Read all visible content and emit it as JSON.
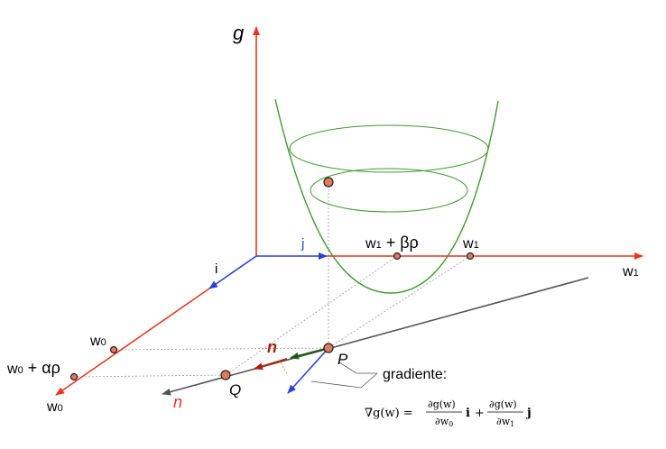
{
  "axes": {
    "g_label": "g",
    "w1_label_main": "w",
    "w1_label_sub": "1",
    "w0_label_main": "w",
    "w0_label_sub": "0",
    "i_label": "i",
    "j_label": "j"
  },
  "points": {
    "w1_plus_main": "w",
    "w1_plus_sub": "1",
    "w1_plus_rest": " + βρ",
    "w1_pt_main": "w",
    "w1_pt_sub": "1",
    "w0_pt_main": "w",
    "w0_pt_sub": "0",
    "w0_plus_main": "w",
    "w0_plus_sub": "0",
    "w0_plus_rest": " + αρ",
    "P": "P",
    "Q": "Q"
  },
  "normal": {
    "n_upper": "n",
    "n_lower": "n"
  },
  "gradient": {
    "label": "gradiente:",
    "nabla_lhs": "∇g(w) =",
    "term1_num": "∂g(w)",
    "term1_den_main": "∂w",
    "term1_den_sub": "0",
    "term1_vec": "i",
    "plus": "+",
    "term2_num": "∂g(w)",
    "term2_den_main": "∂w",
    "term2_den_sub": "1",
    "term2_vec": "j"
  },
  "colors": {
    "axis": "#e8371c",
    "basis": "#2a3fd6",
    "paraboloid": "#3f9b2d",
    "arrow_dark": "#1f5a14",
    "line": "#555555",
    "point_fill": "#e07a62"
  }
}
